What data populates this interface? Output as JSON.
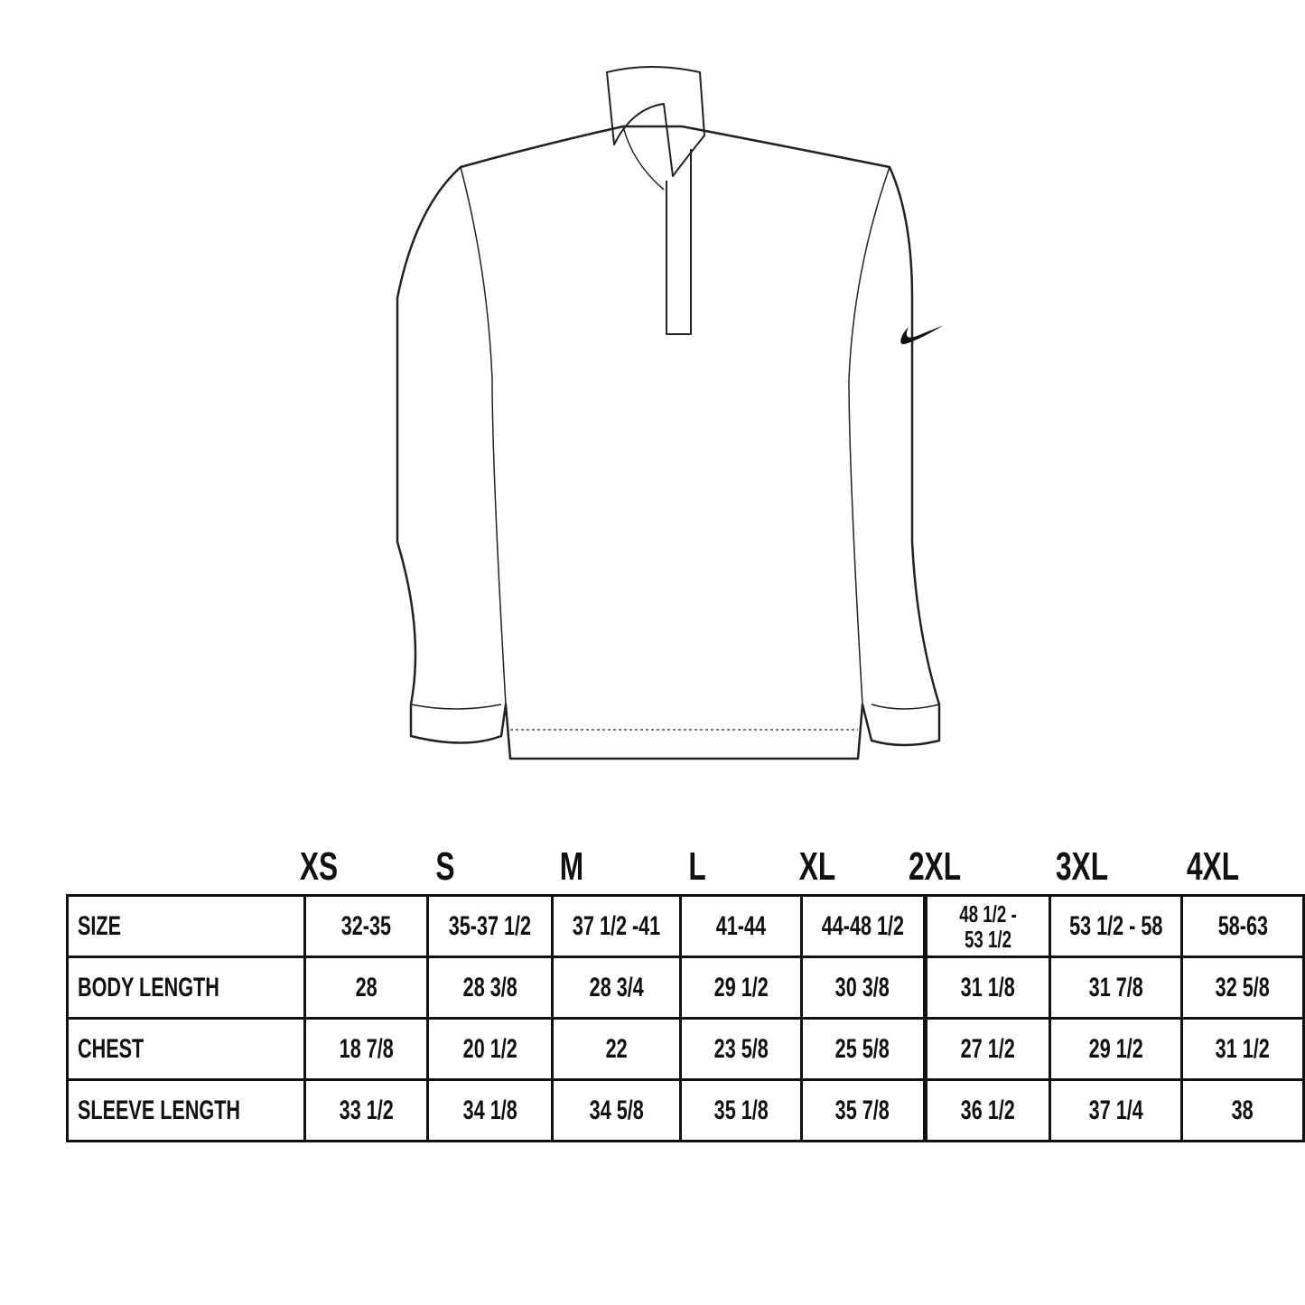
{
  "sizes": [
    "XS",
    "S",
    "M",
    "L",
    "XL",
    "2XL",
    "3XL",
    "4XL"
  ],
  "rows": [
    {
      "label": "SIZE",
      "values": [
        "32-35",
        "35-37 1/2",
        "37 1/2 -41",
        "41-44",
        "44-48 1/2",
        "48 1/2 - 53 1/2",
        "53 1/2 - 58",
        "58-63"
      ]
    },
    {
      "label": "BODY LENGTH",
      "values": [
        "28",
        "28 3/8",
        "28 3/4",
        "29 1/2",
        "30 3/8",
        "31 1/8",
        "31 7/8",
        "32 5/8"
      ]
    },
    {
      "label": "CHEST",
      "values": [
        "18 7/8",
        "20 1/2",
        "22",
        "23 5/8",
        "25 5/8",
        "27 1/2",
        "29 1/2",
        "31 1/2"
      ]
    },
    {
      "label": "SLEEVE LENGTH",
      "values": [
        "33 1/2",
        "34 1/8",
        "34 5/8",
        "35 1/8",
        "35 7/8",
        "36 1/2",
        "37 1/4",
        "38"
      ]
    }
  ],
  "garment": {
    "type": "quarter-zip long sleeve pullover line drawing",
    "logo": "swoosh-icon"
  },
  "colors": {
    "line": "#111111",
    "background": "#ffffff"
  }
}
